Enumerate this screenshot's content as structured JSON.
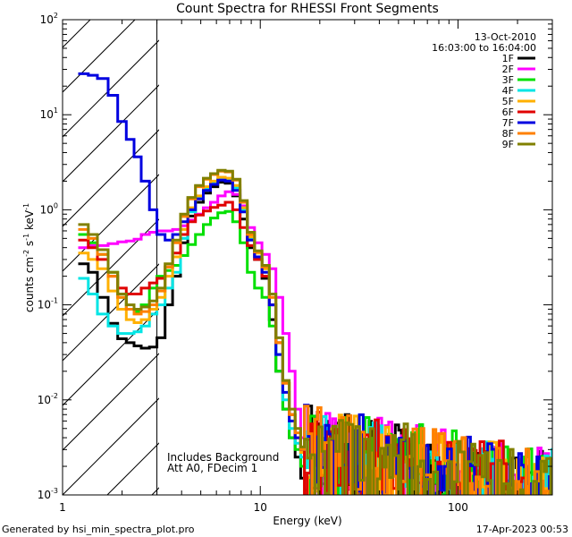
{
  "chart_data": {
    "type": "line",
    "title": "Count Spectra for RHESSI Front Segments",
    "xlabel": "Energy (keV)",
    "ylabel_main": "counts cm",
    "ylabel_exp1": "-2",
    "ylabel_mid": " s",
    "ylabel_exp2": "-1",
    "ylabel_mid2": " keV",
    "ylabel_exp3": "-1",
    "x_scale": "log",
    "y_scale": "log",
    "xlim": [
      1,
      300
    ],
    "ylim": [
      0.001,
      100
    ],
    "x_ticks": [
      {
        "value": 1,
        "label": "1"
      },
      {
        "value": 10,
        "label": "10"
      },
      {
        "value": 100,
        "label": "100"
      }
    ],
    "y_ticks": [
      {
        "value": 0.001,
        "base": "10",
        "exp": "-3"
      },
      {
        "value": 0.01,
        "base": "10",
        "exp": "-2"
      },
      {
        "value": 0.1,
        "base": "10",
        "exp": "-1"
      },
      {
        "value": 1,
        "base": "10",
        "exp": "0"
      },
      {
        "value": 10,
        "base": "10",
        "exp": "1"
      },
      {
        "value": 100,
        "base": "10",
        "exp": "2"
      }
    ],
    "date": "13-Oct-2010",
    "time_range": "16:03:00 to 16:04:00",
    "excluded_region": [
      1,
      3
    ],
    "annotation_lines": [
      "Includes Background",
      "Att A0, FDecim 1"
    ],
    "legend_position": "top-right",
    "series": [
      {
        "name": "1F",
        "color": "#000000",
        "x": [
          1.2,
          1.35,
          1.5,
          1.7,
          1.9,
          2.1,
          2.3,
          2.5,
          2.75,
          3.0,
          3.3,
          3.6,
          3.95,
          4.3,
          4.7,
          5.15,
          5.6,
          6.1,
          6.65,
          7.25,
          7.9,
          8.6,
          9.35,
          10.2,
          11.1,
          12.0,
          13.0,
          14.0,
          15.0,
          16.0
        ],
        "values": [
          0.27,
          0.22,
          0.12,
          0.064,
          0.044,
          0.04,
          0.037,
          0.035,
          0.036,
          0.045,
          0.1,
          0.2,
          0.45,
          0.86,
          1.2,
          1.5,
          1.75,
          1.95,
          1.9,
          1.4,
          0.8,
          0.4,
          0.3,
          0.19,
          0.07,
          0.02,
          0.008,
          0.004,
          0.0025,
          0.0015
        ]
      },
      {
        "name": "2F",
        "color": "#ff00ff",
        "x": [
          1.2,
          1.35,
          1.5,
          1.7,
          1.9,
          2.1,
          2.3,
          2.5,
          2.75,
          3.0,
          3.3,
          3.6,
          3.95,
          4.3,
          4.7,
          5.15,
          5.6,
          6.1,
          6.65,
          7.25,
          7.9,
          8.6,
          9.35,
          10.2,
          11.1,
          12.0,
          13.0,
          14.0,
          15.0,
          16.0
        ],
        "values": [
          0.4,
          0.42,
          0.42,
          0.44,
          0.46,
          0.47,
          0.49,
          0.55,
          0.58,
          0.6,
          0.6,
          0.62,
          0.68,
          0.78,
          0.9,
          1.05,
          1.2,
          1.4,
          1.55,
          1.45,
          1.1,
          0.65,
          0.45,
          0.34,
          0.24,
          0.12,
          0.05,
          0.02,
          0.008,
          0.004
        ]
      },
      {
        "name": "3F",
        "color": "#00e000",
        "x": [
          1.2,
          1.35,
          1.5,
          1.7,
          1.9,
          2.1,
          2.3,
          2.5,
          2.75,
          3.0,
          3.3,
          3.6,
          3.95,
          4.3,
          4.7,
          5.15,
          5.6,
          6.1,
          6.65,
          7.25,
          7.9,
          8.6,
          9.35,
          10.2,
          11.1,
          12.0,
          13.0,
          14.0,
          15.0,
          16.0
        ],
        "values": [
          0.55,
          0.45,
          0.34,
          0.22,
          0.12,
          0.09,
          0.085,
          0.1,
          0.15,
          0.2,
          0.23,
          0.26,
          0.33,
          0.43,
          0.55,
          0.7,
          0.82,
          0.93,
          0.96,
          0.75,
          0.45,
          0.22,
          0.15,
          0.12,
          0.06,
          0.02,
          0.008,
          0.004,
          0.003,
          0.002
        ]
      },
      {
        "name": "4F",
        "color": "#00e5e5",
        "x": [
          1.2,
          1.35,
          1.5,
          1.7,
          1.9,
          2.1,
          2.3,
          2.5,
          2.75,
          3.0,
          3.3,
          3.6,
          3.95,
          4.3,
          4.7,
          5.15,
          5.6,
          6.1,
          6.65,
          7.25,
          7.9,
          8.6,
          9.35,
          10.2,
          11.1,
          12.0,
          13.0,
          14.0,
          15.0,
          16.0
        ],
        "values": [
          0.19,
          0.13,
          0.08,
          0.06,
          0.05,
          0.05,
          0.052,
          0.06,
          0.08,
          0.1,
          0.15,
          0.22,
          0.5,
          0.95,
          1.35,
          1.65,
          1.95,
          2.1,
          2.1,
          1.7,
          1.0,
          0.5,
          0.32,
          0.24,
          0.1,
          0.03,
          0.01,
          0.005,
          0.0035,
          0.0025
        ]
      },
      {
        "name": "5F",
        "color": "#ffb000",
        "x": [
          1.2,
          1.35,
          1.5,
          1.7,
          1.9,
          2.1,
          2.3,
          2.5,
          2.75,
          3.0,
          3.3,
          3.6,
          3.95,
          4.3,
          4.7,
          5.15,
          5.6,
          6.1,
          6.65,
          7.25,
          7.9,
          8.6,
          9.35,
          10.2,
          11.1,
          12.0,
          13.0,
          14.0,
          15.0,
          16.0
        ],
        "values": [
          0.35,
          0.3,
          0.24,
          0.14,
          0.09,
          0.07,
          0.065,
          0.07,
          0.09,
          0.12,
          0.2,
          0.32,
          0.62,
          1.05,
          1.4,
          1.75,
          2.0,
          2.2,
          2.15,
          1.8,
          1.05,
          0.52,
          0.35,
          0.24,
          0.12,
          0.04,
          0.015,
          0.007,
          0.004,
          0.0028
        ]
      },
      {
        "name": "6F",
        "color": "#e00000",
        "x": [
          1.2,
          1.35,
          1.5,
          1.7,
          1.9,
          2.1,
          2.3,
          2.5,
          2.75,
          3.0,
          3.3,
          3.6,
          3.95,
          4.3,
          4.7,
          5.15,
          5.6,
          6.1,
          6.65,
          7.25,
          7.9,
          8.6,
          9.35,
          10.2,
          11.1,
          12.0,
          13.0,
          14.0,
          15.0,
          16.0
        ],
        "values": [
          0.48,
          0.4,
          0.3,
          0.2,
          0.15,
          0.13,
          0.13,
          0.15,
          0.17,
          0.19,
          0.25,
          0.35,
          0.55,
          0.75,
          0.88,
          0.97,
          1.06,
          1.12,
          1.2,
          1.0,
          0.65,
          0.42,
          0.3,
          0.2,
          0.1,
          0.04,
          0.015,
          0.007,
          0.004,
          0.003
        ]
      },
      {
        "name": "7F",
        "color": "#0000e0",
        "x": [
          1.2,
          1.35,
          1.5,
          1.7,
          1.9,
          2.1,
          2.3,
          2.5,
          2.75,
          3.0,
          3.3,
          3.6,
          3.95,
          4.3,
          4.7,
          5.15,
          5.6,
          6.1,
          6.65,
          7.25,
          7.9,
          8.6,
          9.35,
          10.2,
          11.1,
          12.0,
          13.0,
          14.0,
          15.0,
          16.0
        ],
        "values": [
          27,
          26,
          24,
          16,
          8.5,
          5.5,
          3.6,
          2.0,
          1.0,
          0.55,
          0.48,
          0.55,
          0.75,
          1.0,
          1.3,
          1.6,
          1.85,
          2.05,
          2.0,
          1.6,
          0.95,
          0.48,
          0.32,
          0.22,
          0.1,
          0.03,
          0.012,
          0.006,
          0.004,
          0.003
        ]
      },
      {
        "name": "8F",
        "color": "#ff8000",
        "x": [
          1.2,
          1.35,
          1.5,
          1.7,
          1.9,
          2.1,
          2.3,
          2.5,
          2.75,
          3.0,
          3.3,
          3.6,
          3.95,
          4.3,
          4.7,
          5.15,
          5.6,
          6.1,
          6.65,
          7.25,
          7.9,
          8.6,
          9.35,
          10.2,
          11.1,
          12.0,
          13.0,
          14.0,
          15.0,
          16.0
        ],
        "values": [
          0.62,
          0.5,
          0.34,
          0.2,
          0.12,
          0.09,
          0.08,
          0.085,
          0.1,
          0.14,
          0.25,
          0.45,
          0.85,
          1.3,
          1.75,
          2.1,
          2.35,
          2.55,
          2.5,
          2.05,
          1.2,
          0.55,
          0.36,
          0.25,
          0.12,
          0.04,
          0.015,
          0.007,
          0.0045,
          0.003
        ]
      },
      {
        "name": "9F",
        "color": "#808000",
        "x": [
          1.2,
          1.35,
          1.5,
          1.7,
          1.9,
          2.1,
          2.3,
          2.5,
          2.75,
          3.0,
          3.3,
          3.6,
          3.95,
          4.3,
          4.7,
          5.15,
          5.6,
          6.1,
          6.65,
          7.25,
          7.9,
          8.6,
          9.35,
          10.2,
          11.1,
          12.0,
          13.0,
          14.0,
          15.0,
          16.0
        ],
        "values": [
          0.7,
          0.55,
          0.38,
          0.22,
          0.13,
          0.1,
          0.09,
          0.095,
          0.11,
          0.15,
          0.27,
          0.48,
          0.9,
          1.35,
          1.8,
          2.15,
          2.4,
          2.6,
          2.55,
          2.1,
          1.25,
          0.58,
          0.37,
          0.26,
          0.13,
          0.045,
          0.016,
          0.008,
          0.005,
          0.0032
        ]
      }
    ]
  },
  "footer": {
    "generated_by": "Generated by hsi_min_spectra_plot.pro",
    "timestamp": "17-Apr-2023 00:53"
  }
}
